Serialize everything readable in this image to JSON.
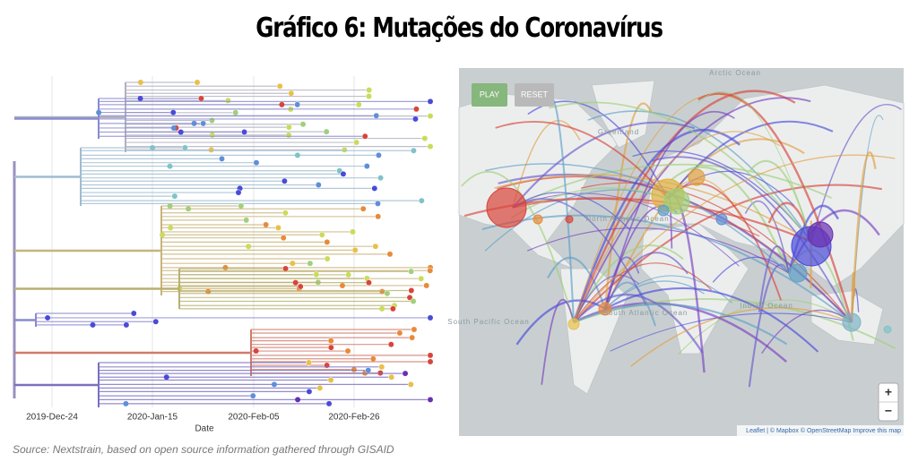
{
  "title": "Gráfico 6: Mutações do Coronavírus",
  "tree": {
    "x_ticks": [
      "2019-Dec-24",
      "2020-Jan-15",
      "2020-Feb-05",
      "2020-Feb-26"
    ],
    "x_label": "Date"
  },
  "map": {
    "buttons": [
      "PLAY",
      "RESET"
    ],
    "labels": [
      "Arctic Ocean",
      "Greenland",
      "North Atlantic Ocean",
      "South Pacific Ocean",
      "South Atlantic Ocean",
      "Indian Ocean"
    ],
    "zoom": [
      "+",
      "−"
    ],
    "attribution": "Leaflet | © Mapbox © OpenStreetMap Improve this map"
  },
  "source": "Source: Nextstrain, based on open source information gathered through GISAID"
}
